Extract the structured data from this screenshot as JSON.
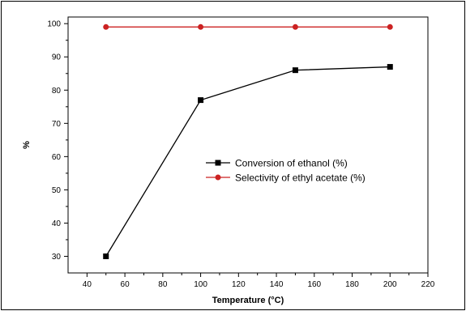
{
  "chart_data": {
    "type": "line",
    "xlabel": "Temperature (°C)",
    "ylabel": "%",
    "xlim": [
      30,
      220
    ],
    "ylim": [
      25,
      102
    ],
    "x_ticks": [
      40,
      60,
      80,
      100,
      120,
      140,
      160,
      180,
      200,
      220
    ],
    "y_ticks": [
      30,
      40,
      50,
      60,
      70,
      80,
      90,
      100
    ],
    "legend_position": "center-right",
    "grid": false,
    "series": [
      {
        "name": "Conversion of ethanol (%)",
        "color": "#000000",
        "marker": "square",
        "x": [
          50,
          100,
          150,
          200
        ],
        "y": [
          30,
          77,
          86,
          87
        ]
      },
      {
        "name": "Selectivity of ethyl acetate (%)",
        "color": "#cc2222",
        "marker": "circle",
        "x": [
          50,
          100,
          150,
          200
        ],
        "y": [
          99,
          99,
          99,
          99
        ]
      }
    ]
  }
}
